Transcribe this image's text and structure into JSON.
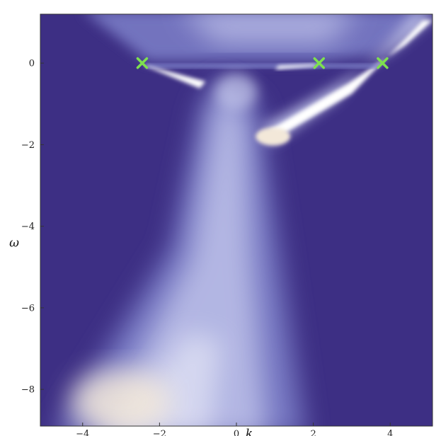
{
  "chart_data": {
    "type": "heatmap",
    "title": "",
    "xlabel": "k",
    "ylabel": "ω",
    "xlim": [
      -5.1,
      5.1
    ],
    "ylim": [
      -8.9,
      1.2
    ],
    "x_ticks": [
      -4,
      -2,
      0,
      2,
      4
    ],
    "y_ticks": [
      -8,
      -6,
      -4,
      -2,
      0
    ],
    "x_tick_labels": [
      "−4",
      "−2",
      "0",
      "2",
      "4"
    ],
    "y_tick_labels": [
      "−8",
      "−6",
      "−4",
      "−2",
      "0"
    ],
    "grid": false,
    "legend": "none",
    "colormap": [
      "#3d2f84",
      "#7d80c9",
      "#c7cbee",
      "#ffffff",
      "#f3e8d9"
    ],
    "marker_color": "#7ee04f",
    "markers": [
      {
        "x": -2.45,
        "y": 0.0
      },
      {
        "x": 2.15,
        "y": 0.0
      },
      {
        "x": 3.8,
        "y": 0.0
      }
    ]
  }
}
